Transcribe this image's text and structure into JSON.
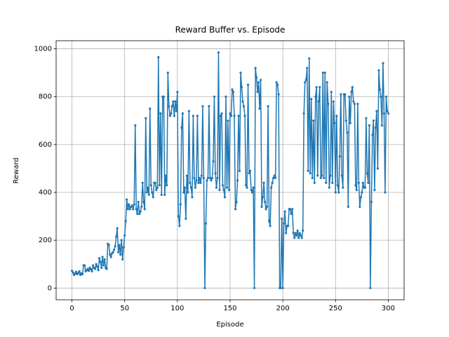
{
  "chart_data": {
    "type": "line",
    "title": "Reward Buffer vs. Episode",
    "x_label": "Episode",
    "y_label": "Reward",
    "x": [
      0,
      1,
      2,
      3,
      4,
      5,
      6,
      7,
      8,
      9,
      10,
      11,
      12,
      13,
      14,
      15,
      16,
      17,
      18,
      19,
      20,
      21,
      22,
      23,
      24,
      25,
      26,
      27,
      28,
      29,
      30,
      31,
      32,
      33,
      34,
      35,
      36,
      37,
      38,
      39,
      40,
      41,
      42,
      43,
      44,
      45,
      46,
      47,
      48,
      49,
      50,
      51,
      52,
      53,
      54,
      55,
      56,
      57,
      58,
      59,
      60,
      61,
      62,
      63,
      64,
      65,
      66,
      67,
      68,
      69,
      70,
      71,
      72,
      73,
      74,
      75,
      76,
      77,
      78,
      79,
      80,
      81,
      82,
      83,
      84,
      85,
      86,
      87,
      88,
      89,
      90,
      91,
      92,
      93,
      94,
      95,
      96,
      97,
      98,
      99,
      100,
      101,
      102,
      103,
      104,
      105,
      106,
      107,
      108,
      109,
      110,
      111,
      112,
      113,
      114,
      115,
      116,
      117,
      118,
      119,
      120,
      121,
      122,
      123,
      124,
      125,
      126,
      127,
      128,
      129,
      130,
      131,
      132,
      133,
      134,
      135,
      136,
      137,
      138,
      139,
      140,
      141,
      142,
      143,
      144,
      145,
      146,
      147,
      148,
      149,
      150,
      151,
      152,
      153,
      154,
      155,
      156,
      157,
      158,
      159,
      160,
      161,
      162,
      163,
      164,
      165,
      166,
      167,
      168,
      169,
      170,
      171,
      172,
      173,
      174,
      175,
      176,
      177,
      178,
      179,
      180,
      181,
      182,
      183,
      184,
      185,
      186,
      187,
      188,
      189,
      190,
      191,
      192,
      193,
      194,
      195,
      196,
      197,
      198,
      199,
      200,
      201,
      202,
      203,
      204,
      205,
      206,
      207,
      208,
      209,
      210,
      211,
      212,
      213,
      214,
      215,
      216,
      217,
      218,
      219,
      220,
      221,
      222,
      223,
      224,
      225,
      226,
      227,
      228,
      229,
      230,
      231,
      232,
      233,
      234,
      235,
      236,
      237,
      238,
      239,
      240,
      241,
      242,
      243,
      244,
      245,
      246,
      247,
      248,
      249,
      250,
      251,
      252,
      253,
      254,
      255,
      256,
      257,
      258,
      259,
      260,
      261,
      262,
      263,
      264,
      265,
      266,
      267,
      268,
      269,
      270,
      271,
      272,
      273,
      274,
      275,
      276,
      277,
      278,
      279,
      280,
      281,
      282,
      283,
      284,
      285,
      286,
      287,
      288,
      289,
      290,
      291,
      292,
      293,
      294,
      295,
      296,
      297,
      298,
      299,
      300
    ],
    "series": [
      {
        "color": "#1f77b4",
        "values": [
          72,
          65,
          55,
          60,
          68,
          58,
          62,
          70,
          55,
          62,
          58,
          95,
          95,
          70,
          75,
          80,
          72,
          85,
          78,
          70,
          95,
          85,
          80,
          100,
          90,
          75,
          125,
          110,
          85,
          130,
          95,
          120,
          85,
          80,
          185,
          180,
          140,
          130,
          145,
          150,
          160,
          175,
          215,
          250,
          150,
          180,
          140,
          200,
          120,
          170,
          220,
          280,
          370,
          330,
          350,
          330,
          340,
          345,
          330,
          350,
          680,
          330,
          310,
          360,
          310,
          320,
          340,
          440,
          360,
          330,
          710,
          400,
          420,
          390,
          750,
          430,
          400,
          380,
          440,
          440,
          410,
          420,
          965,
          430,
          730,
          390,
          800,
          800,
          390,
          470,
          430,
          900,
          760,
          720,
          730,
          760,
          780,
          720,
          780,
          740,
          820,
          300,
          260,
          350,
          670,
          730,
          400,
          420,
          290,
          470,
          400,
          740,
          440,
          420,
          380,
          720,
          460,
          420,
          450,
          720,
          440,
          460,
          440,
          470,
          760,
          460,
          0,
          270,
          450,
          460,
          760,
          460,
          450,
          460,
          530,
          800,
          480,
          420,
          460,
          985,
          410,
          720,
          730,
          430,
          410,
          380,
          800,
          420,
          700,
          410,
          730,
          720,
          830,
          820,
          720,
          330,
          360,
          450,
          720,
          490,
          900,
          840,
          780,
          760,
          720,
          430,
          420,
          850,
          480,
          490,
          410,
          400,
          420,
          0,
          920,
          880,
          820,
          860,
          750,
          870,
          340,
          380,
          440,
          360,
          330,
          340,
          760,
          280,
          260,
          420,
          440,
          460,
          470,
          460,
          860,
          850,
          810,
          0,
          0,
          290,
          0,
          270,
          320,
          230,
          260,
          260,
          330,
          330,
          310,
          330,
          230,
          210,
          230,
          220,
          240,
          210,
          230,
          220,
          210,
          240,
          730,
          860,
          870,
          920,
          490,
          960,
          480,
          790,
          460,
          700,
          440,
          800,
          840,
          470,
          780,
          840,
          460,
          470,
          900,
          460,
          900,
          440,
          860,
          770,
          420,
          470,
          820,
          440,
          780,
          690,
          400,
          720,
          430,
          400,
          550,
          810,
          470,
          420,
          810,
          810,
          700,
          650,
          340,
          800,
          690,
          820,
          840,
          780,
          770,
          430,
          410,
          770,
          440,
          340,
          380,
          400,
          440,
          420,
          420,
          710,
          480,
          440,
          680,
          0,
          360,
          640,
          700,
          410,
          670,
          740,
          500,
          910,
          830,
          800,
          680,
          940,
          730,
          400,
          800,
          740,
          730
        ]
      }
    ],
    "xlim": [
      -15,
      315
    ],
    "ylim": [
      -49,
      1034
    ],
    "xticks": [
      0,
      50,
      100,
      150,
      200,
      250,
      300
    ],
    "yticks": [
      0,
      200,
      400,
      600,
      800,
      1000
    ],
    "grid": true
  }
}
